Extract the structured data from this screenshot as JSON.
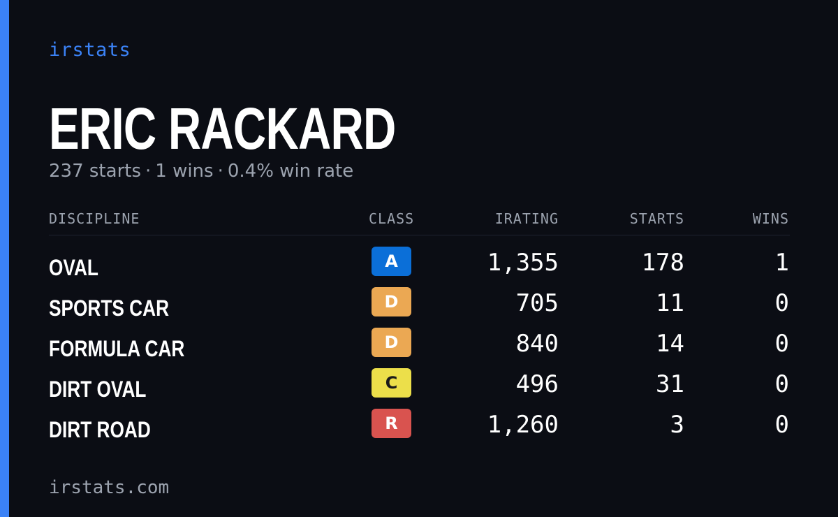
{
  "brand": "irstats",
  "player": {
    "name": "ERIC RACKARD",
    "starts_text": "237 starts",
    "wins_text": "1 wins",
    "win_rate_text": "0.4% win rate",
    "separator": "·"
  },
  "table": {
    "headers": {
      "discipline": "DISCIPLINE",
      "class": "CLASS",
      "irating": "IRATING",
      "starts": "STARTS",
      "wins": "WINS"
    },
    "rows": [
      {
        "discipline": "OVAL",
        "class": "A",
        "irating": "1,355",
        "starts": "178",
        "wins": "1"
      },
      {
        "discipline": "SPORTS CAR",
        "class": "D",
        "irating": "705",
        "starts": "11",
        "wins": "0"
      },
      {
        "discipline": "FORMULA CAR",
        "class": "D",
        "irating": "840",
        "starts": "14",
        "wins": "0"
      },
      {
        "discipline": "DIRT OVAL",
        "class": "C",
        "irating": "496",
        "starts": "31",
        "wins": "0"
      },
      {
        "discipline": "DIRT ROAD",
        "class": "R",
        "irating": "1,260",
        "starts": "3",
        "wins": "0"
      }
    ]
  },
  "class_colors": {
    "A": {
      "bg": "#0b6fd8",
      "fg": "#ffffff"
    },
    "D": {
      "bg": "#eba853",
      "fg": "#ffffff"
    },
    "C": {
      "bg": "#ecdf4a",
      "fg": "#1a1a1a"
    },
    "R": {
      "bg": "#d9534f",
      "fg": "#ffffff"
    }
  },
  "colors": {
    "accent": "#3b82f6",
    "background": "#0b0d14",
    "muted_text": "#9ca3af"
  },
  "footer": {
    "url": "irstats.com"
  }
}
